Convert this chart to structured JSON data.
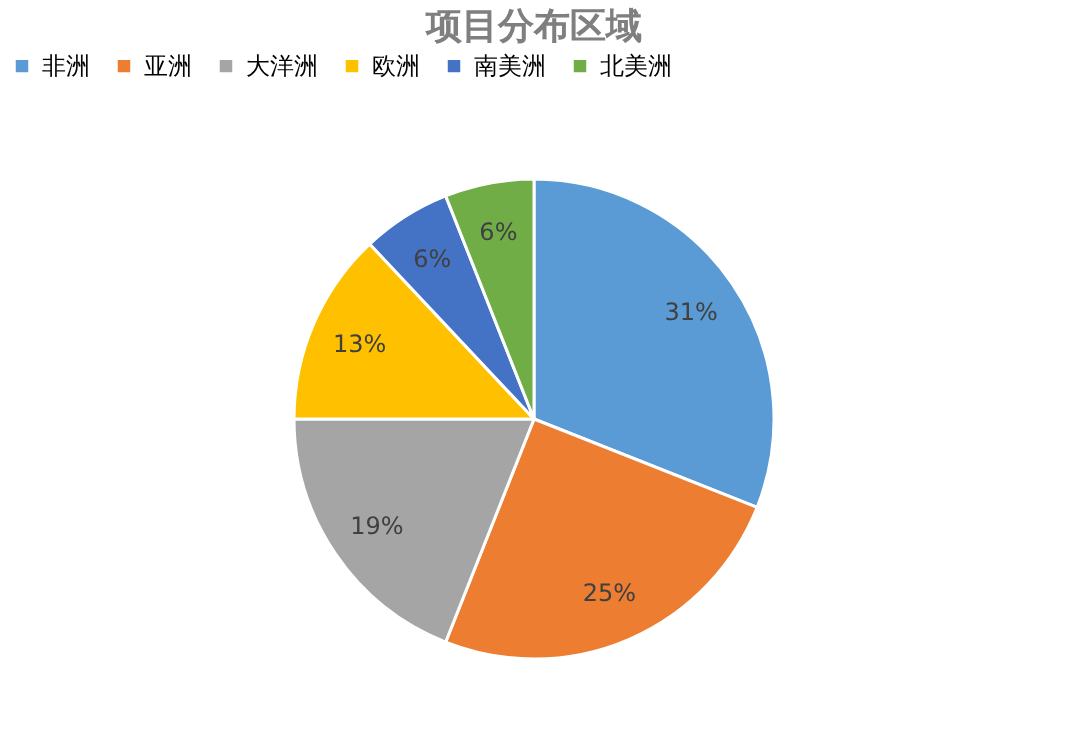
{
  "chart_data": {
    "type": "pie",
    "title": "项目分布区域",
    "categories": [
      "非洲",
      "亚洲",
      "大洋洲",
      "欧洲",
      "南美洲",
      "北美洲"
    ],
    "values": [
      31,
      25,
      19,
      13,
      6,
      6
    ],
    "colors": [
      "#5b9bd5",
      "#ed7d31",
      "#a5a5a5",
      "#ffc000",
      "#4472c4",
      "#70ad47"
    ],
    "value_labels": [
      "31%",
      "25%",
      "19%",
      "13%",
      "6%",
      "6%"
    ],
    "legend": "top"
  }
}
